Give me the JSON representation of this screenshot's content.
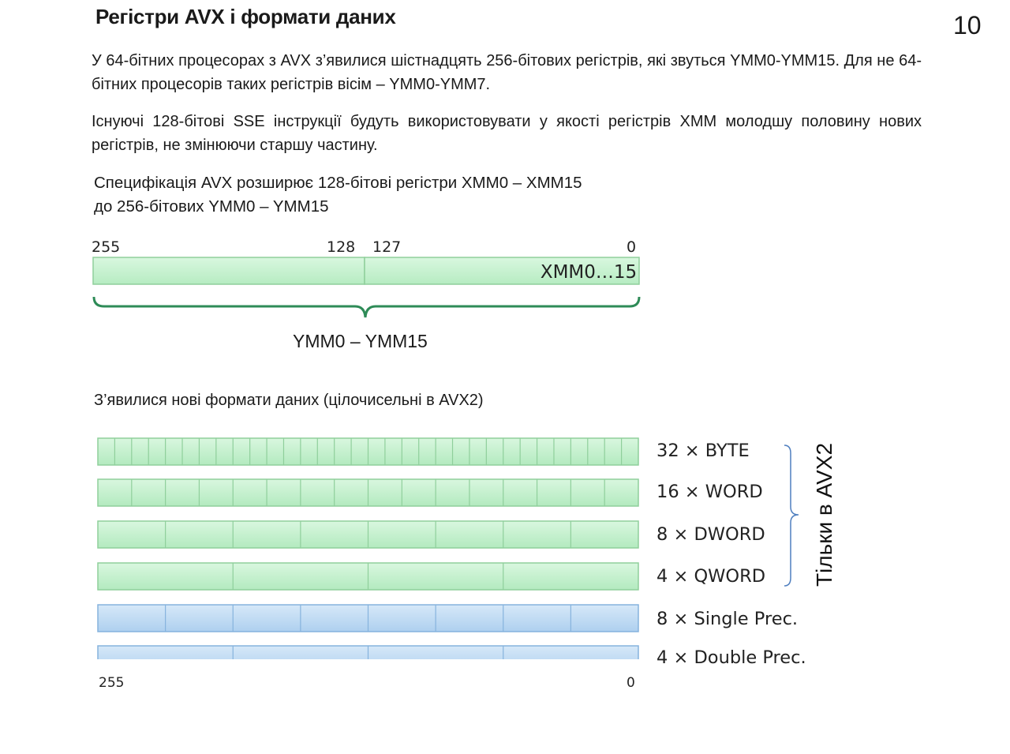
{
  "title": "Регістри AVX і формати даних",
  "slide_number": "10",
  "paragraphs": [
    "У 64-бітних процесорах з AVX з’явилися шістнадцять 256-бітових регістрів, які звуться YMM0-YMM15. Для не 64-бітних процесорів таких регістрів вісім – YMM0-YMM7.",
    "Існуючі 128-бітові SSE інструкції будуть використовувати у якості регістрів XMM молодшу половину нових регістрів, не змінюючи старшу частину."
  ],
  "spec": {
    "line1": "Специфікація AVX розширює 128-бітові регістри XMM0 – XMM15",
    "line2": "до 256-бітових YMM0 – YMM15"
  },
  "register_diagram": {
    "bit_labels": [
      "255",
      "128",
      "127",
      "0"
    ],
    "low_half_label": "XMM0…15",
    "brace_label": "YMM0 – YMM15",
    "fill_color": "#c6f1cf",
    "stroke_color": "#8fcf9b",
    "brace_color": "#2e8b57"
  },
  "formats_heading": "З’явилися нові формати даних (цілочисельні в AVX2)",
  "formats": [
    {
      "label": "32 × BYTE",
      "elements": 32,
      "kind": "integer"
    },
    {
      "label": "16 × WORD",
      "elements": 16,
      "kind": "integer"
    },
    {
      "label": "8 × DWORD",
      "elements": 8,
      "kind": "integer"
    },
    {
      "label": "4 × QWORD",
      "elements": 4,
      "kind": "integer"
    },
    {
      "label": "8 × Single Prec.",
      "elements": 8,
      "kind": "float"
    },
    {
      "label": "4 × Double Prec.",
      "elements": 4,
      "kind": "float"
    }
  ],
  "format_bit_labels": [
    "255",
    "0"
  ],
  "avx2_note": "Тільки в AVX2",
  "colors": {
    "integer_fill": "#c6f1cf",
    "integer_stroke": "#8fcf9b",
    "float_fill": "#c3ddf5",
    "float_stroke": "#86b3dd",
    "bracket": "#4f7fbf"
  }
}
